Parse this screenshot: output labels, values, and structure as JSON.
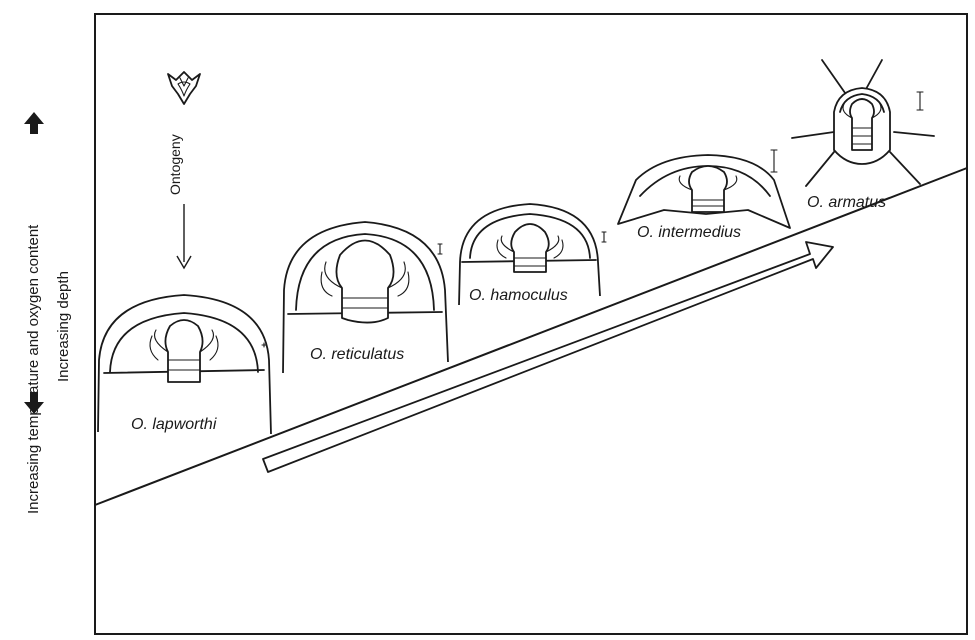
{
  "side_labels": {
    "temperature": "Increasing temperature and oxygen content",
    "depth": "Increasing depth"
  },
  "ontogeny_label": "Ontogeny",
  "species": [
    {
      "label": "O. lapworthi"
    },
    {
      "label": "O. reticulatus"
    },
    {
      "label": "O. hamoculus"
    },
    {
      "label": "O. intermedius"
    },
    {
      "label": "O. armatus"
    }
  ]
}
